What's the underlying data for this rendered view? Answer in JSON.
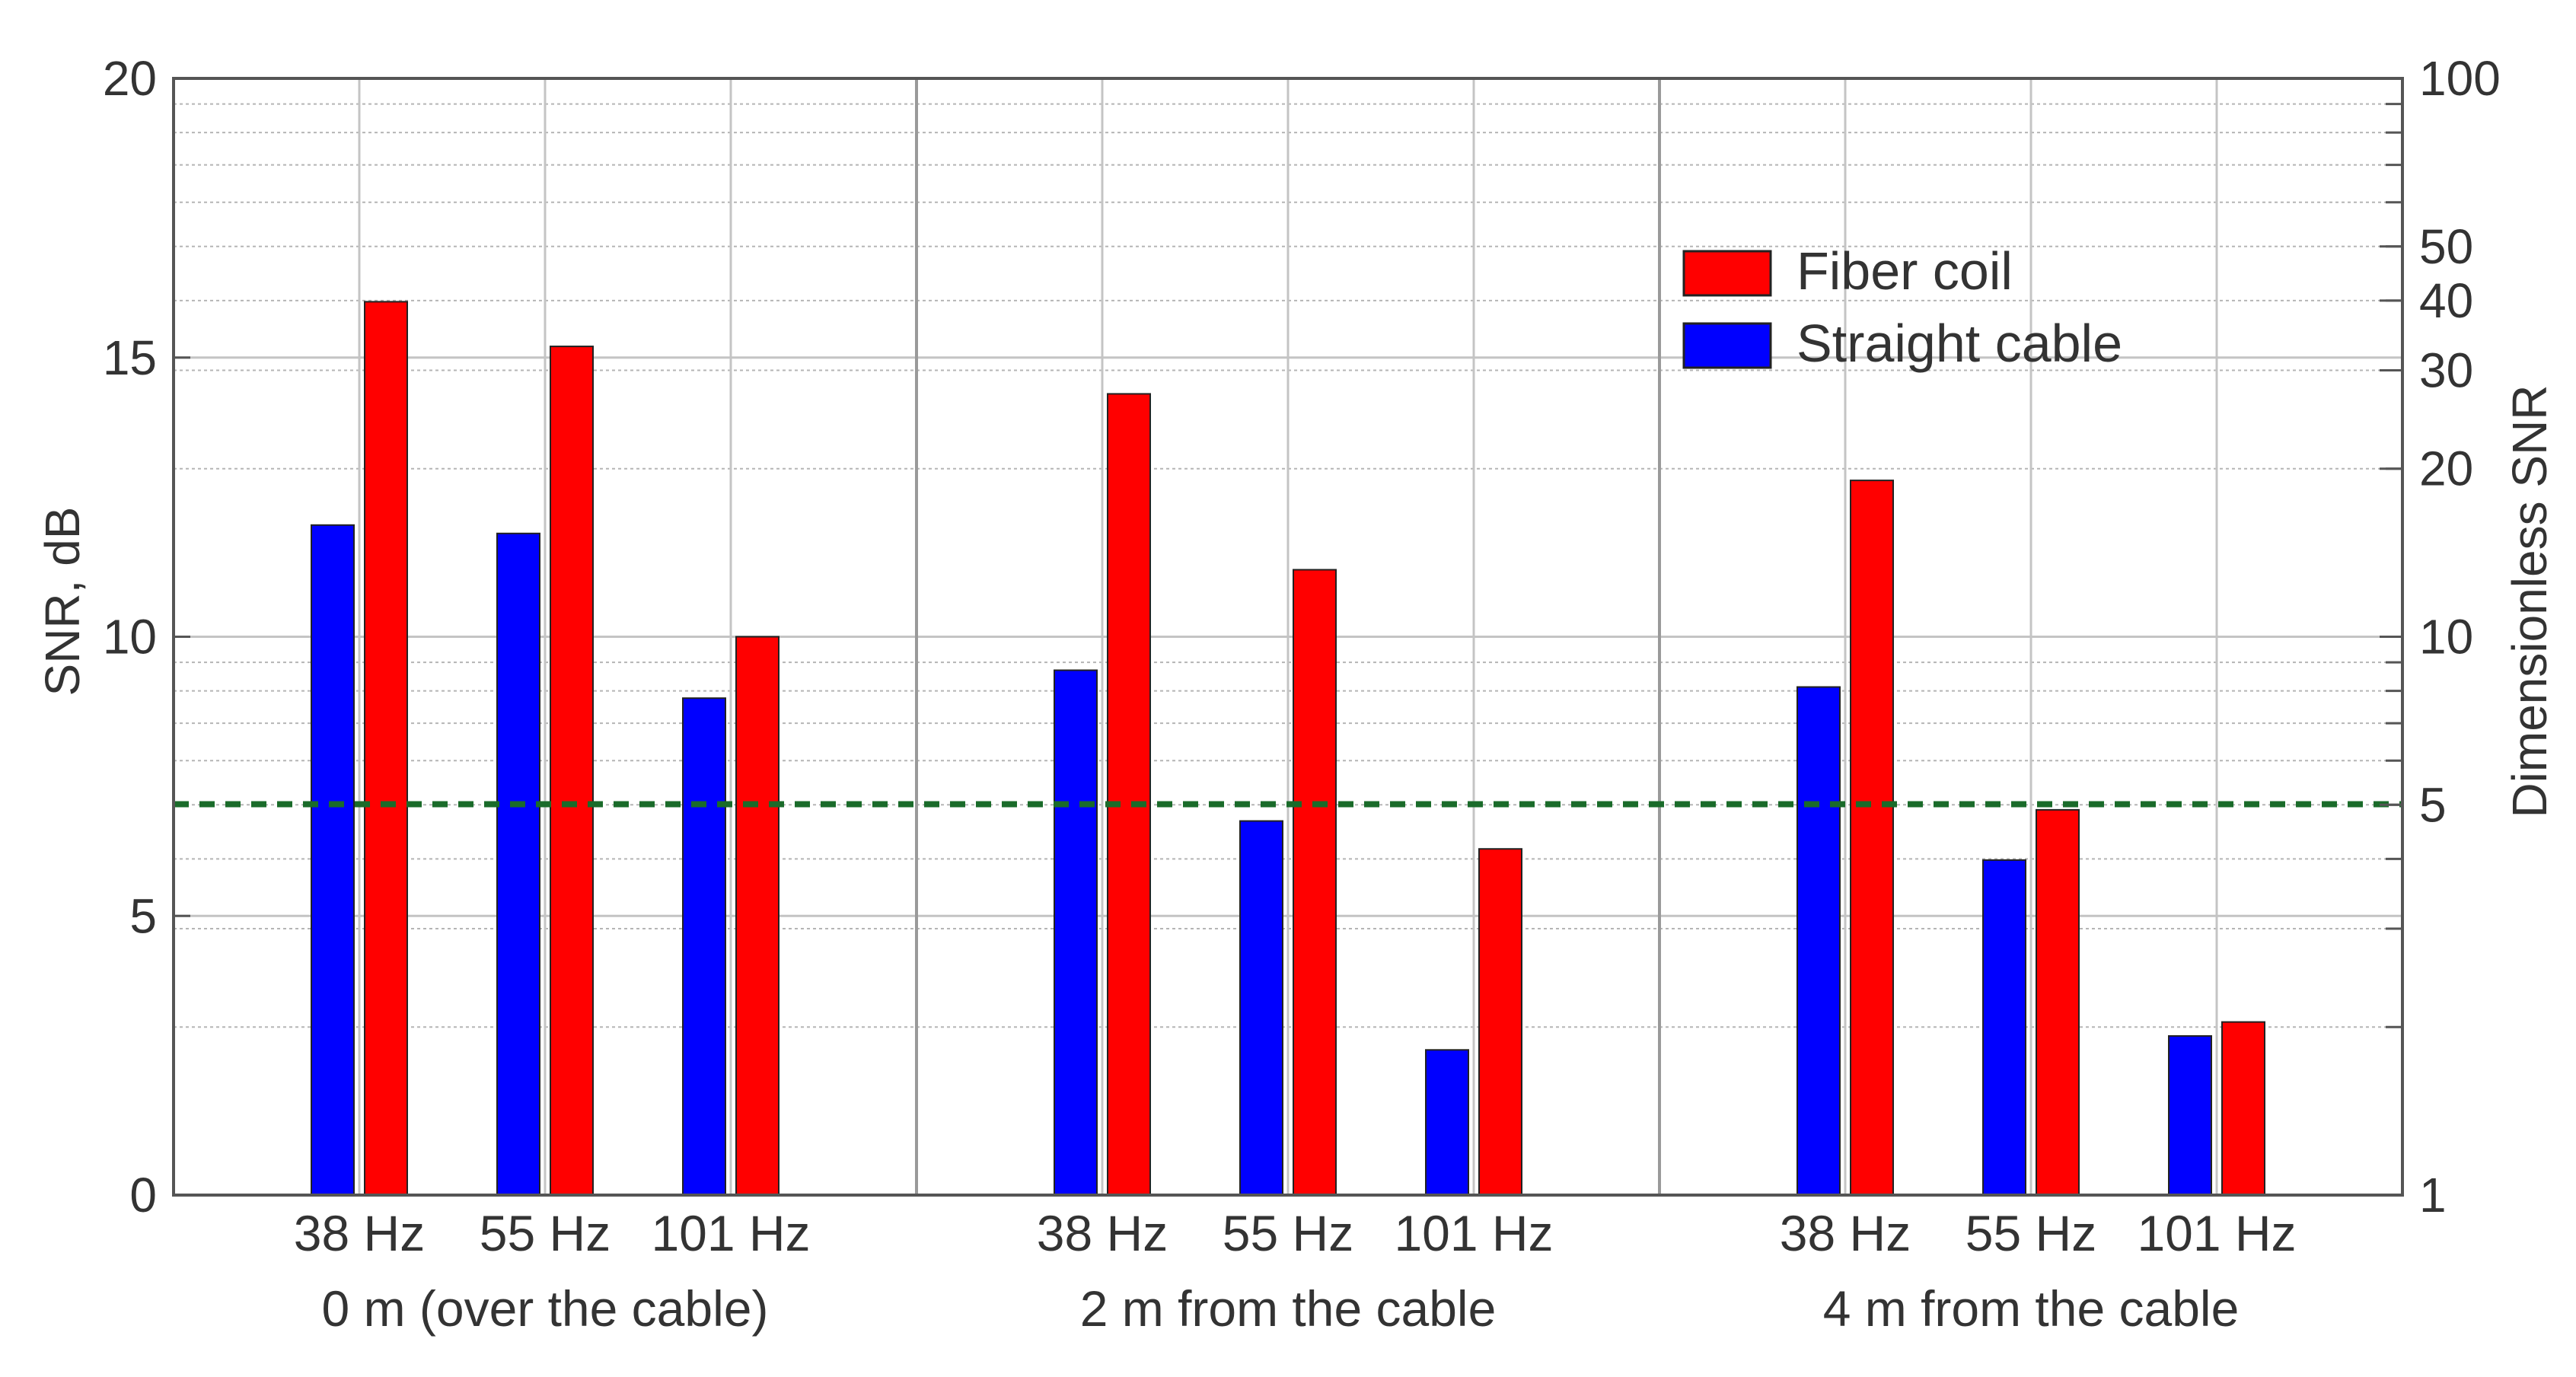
{
  "chart_data": {
    "type": "bar",
    "ylabel": "SNR, dB",
    "y2label": "Dimensionless SNR",
    "ylim": [
      0,
      20
    ],
    "y_ticks": [
      "0",
      "5",
      "10",
      "15",
      "20"
    ],
    "y2_scale": "log",
    "y2_ticks": [
      {
        "label": "1",
        "value": 1
      },
      {
        "label": "5",
        "value": 5
      },
      {
        "label": "10",
        "value": 10
      },
      {
        "label": "20",
        "value": 20
      },
      {
        "label": "30",
        "value": 30
      },
      {
        "label": "40",
        "value": 40
      },
      {
        "label": "50",
        "value": 50
      },
      {
        "label": "100",
        "value": 100
      }
    ],
    "groups": [
      {
        "label": "0 m (over the cable)",
        "categories": [
          "38 Hz",
          "55 Hz",
          "101 Hz"
        ]
      },
      {
        "label": "2 m from the cable",
        "categories": [
          "38 Hz",
          "55 Hz",
          "101 Hz"
        ]
      },
      {
        "label": "4 m from the cable",
        "categories": [
          "38 Hz",
          "55 Hz",
          "101 Hz"
        ]
      }
    ],
    "series": [
      {
        "name": "Straight  cable",
        "color": "#0000ff",
        "values": [
          12.0,
          11.85,
          8.9,
          9.4,
          6.7,
          2.6,
          9.1,
          6.0,
          2.85
        ]
      },
      {
        "name": "Fiber coil",
        "color": "#ff0000",
        "values": [
          16.0,
          15.2,
          10.0,
          14.35,
          11.2,
          6.2,
          12.8,
          6.9,
          3.1
        ]
      }
    ],
    "legend_order": [
      "Fiber coil",
      "Straight  cable"
    ],
    "legend_position": "top-right",
    "threshold_line": {
      "value": 7,
      "color": "#1a6b2a",
      "style": "dashed"
    },
    "grid": true
  }
}
